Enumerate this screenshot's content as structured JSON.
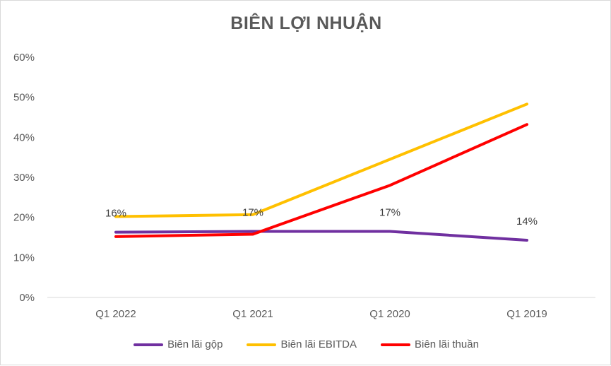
{
  "chart_data": {
    "type": "line",
    "title": "BIÊN LỢI NHUẬN",
    "categories": [
      "Q1 2022",
      "Q1 2021",
      "Q1 2020",
      "Q1 2019"
    ],
    "ylim": [
      0,
      0.6
    ],
    "yticks": [
      0,
      0.1,
      0.2,
      0.3,
      0.4,
      0.5,
      0.6
    ],
    "ytick_labels": [
      "0%",
      "10%",
      "20%",
      "30%",
      "40%",
      "50%",
      "60%"
    ],
    "grid": false,
    "legend_position": "bottom",
    "series": [
      {
        "name": "Biên lãi gộp",
        "color": "#7030a0",
        "values": [
          0.163,
          0.165,
          0.165,
          0.143
        ],
        "data_labels": [
          "16%",
          "17%",
          "17%",
          "14%"
        ]
      },
      {
        "name": "Biên lãi EBITDA",
        "color": "#ffc000",
        "values": [
          0.202,
          0.207,
          0.345,
          0.483
        ],
        "data_labels": []
      },
      {
        "name": "Biên lãi thuần",
        "color": "#ff0000",
        "values": [
          0.152,
          0.158,
          0.28,
          0.432
        ],
        "data_labels": []
      }
    ]
  }
}
